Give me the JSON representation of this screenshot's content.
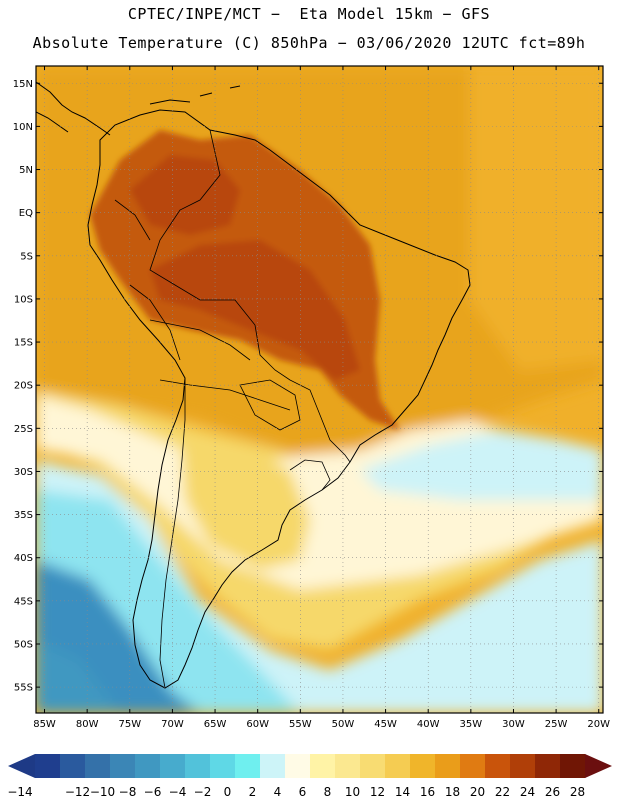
{
  "title": {
    "line1": "CPTEC/INPE/MCT −  Eta Model 15km − GFS",
    "line2": "Absolute Temperature (C) 850hPa − 03/06/2020 12UTC fct=89h"
  },
  "lat_labels": [
    "15N",
    "10N",
    "5N",
    "EQ",
    "5S",
    "10S",
    "15S",
    "20S",
    "25S",
    "30S",
    "35S",
    "40S",
    "45S",
    "50S",
    "55S"
  ],
  "lon_labels": [
    "85W",
    "80W",
    "75W",
    "70W",
    "65W",
    "60W",
    "55W",
    "50W",
    "45W",
    "40W",
    "35W",
    "30W",
    "25W",
    "20W"
  ],
  "colorbar": {
    "labels": [
      "−14",
      "−12",
      "−10",
      "−8",
      "−6",
      "−4",
      "−2",
      "0",
      "2",
      "4",
      "6",
      "8",
      "10",
      "12",
      "14",
      "16",
      "18",
      "20",
      "22",
      "24",
      "26",
      "28"
    ],
    "colors": [
      "#1f3e8e",
      "#2a5a9e",
      "#3471a9",
      "#3b86b6",
      "#4098c1",
      "#47abcd",
      "#52c2da",
      "#5fd8e6",
      "#6fefef",
      "#cdf4f8",
      "#fffbe6",
      "#fff3a6",
      "#fbe890",
      "#f8dc72",
      "#f5cc52",
      "#f0b52a",
      "#ea9d1a",
      "#e07b12",
      "#c9540b",
      "#b03f08",
      "#8f2706",
      "#701605"
    ],
    "under_color": "#1e3a86",
    "over_color": "#6b0f0f"
  },
  "field_colors": {
    "tropical_hot": "#c45a10",
    "tropical_core": "#b8470a",
    "warm_band": "#e8a41e",
    "ocean_warm": "#f0b02a",
    "mid_yellow": "#f6d86a",
    "pale_cream": "#fff6d6",
    "light_cyan": "#cdf3f8",
    "cyan": "#8ee4f0",
    "deep_cold": "#3a8fc0",
    "coast_line": "#000000"
  }
}
